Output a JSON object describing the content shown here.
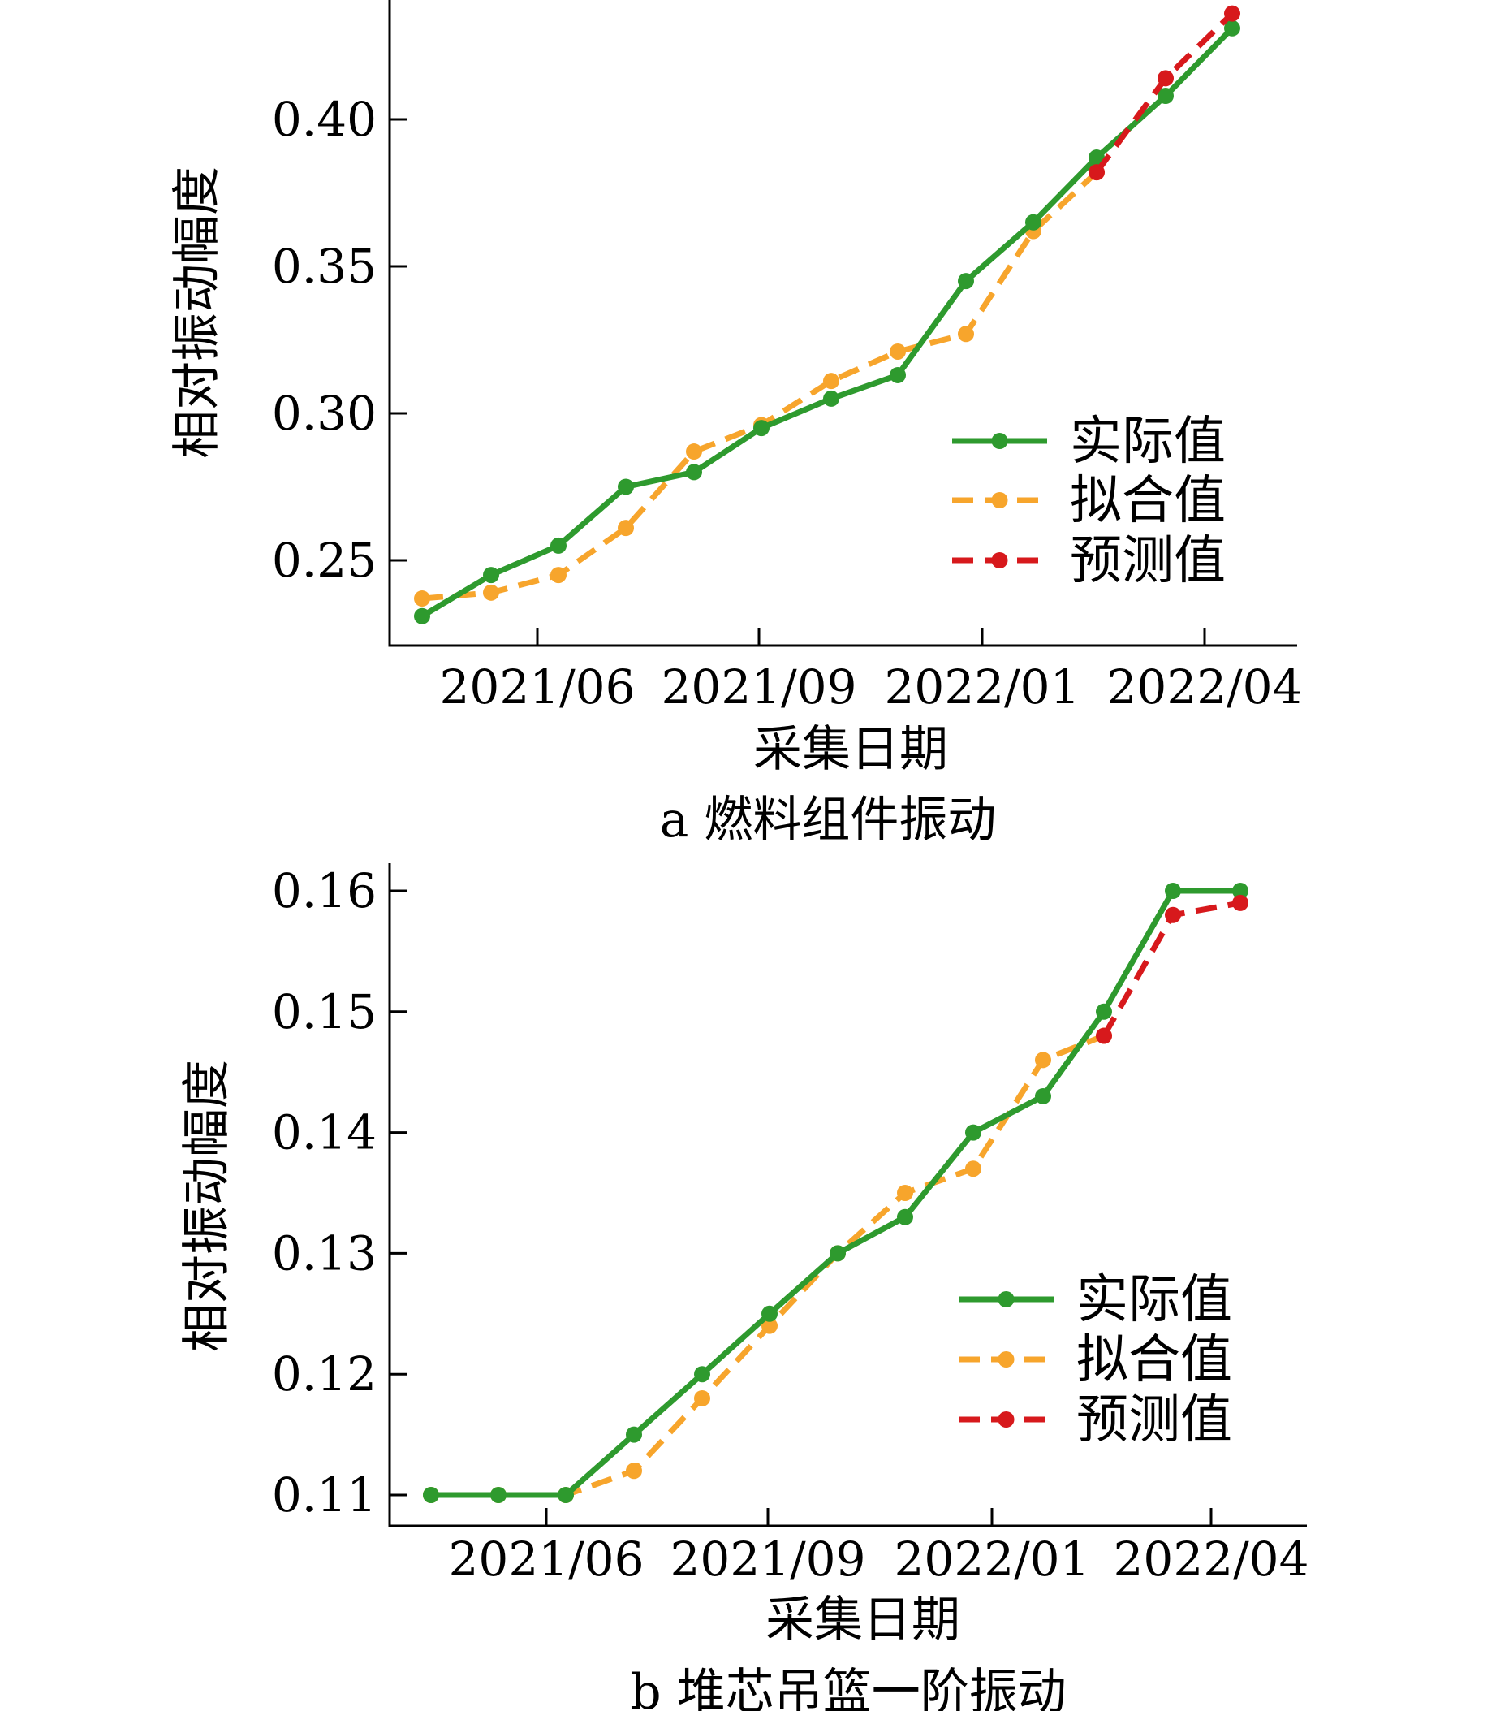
{
  "chart_data": [
    {
      "type": "line",
      "caption": "a  燃料组件振动",
      "xlabel": "采集日期",
      "ylabel": "相对振动幅度",
      "x_ticks": [
        "2021/06",
        "2021/09",
        "2022/01",
        "2022/04"
      ],
      "y_ticks": [
        "0.25",
        "0.30",
        "0.35",
        "0.40"
      ],
      "ylim": [
        0.22,
        0.44
      ],
      "legend_position": "lower-right",
      "grid": false,
      "series": [
        {
          "name": "实际值",
          "color": "#2e9a2e",
          "style": "solid",
          "values": [
            0.231,
            0.245,
            0.255,
            0.275,
            0.28,
            0.295,
            0.305,
            0.313,
            0.345,
            0.365,
            0.387,
            0.408,
            0.431
          ]
        },
        {
          "name": "拟合值",
          "color": "#f7a52c",
          "style": "dashed",
          "values": [
            0.237,
            0.239,
            0.245,
            0.261,
            0.287,
            0.296,
            0.311,
            0.321,
            0.327,
            0.362,
            0.382,
            null,
            null
          ]
        },
        {
          "name": "预测值",
          "color": "#d7191c",
          "style": "dashed",
          "values": [
            null,
            null,
            null,
            null,
            null,
            null,
            null,
            null,
            null,
            null,
            0.382,
            0.414,
            0.436
          ]
        }
      ]
    },
    {
      "type": "line",
      "caption": "b  堆芯吊篮一阶振动",
      "xlabel": "采集日期",
      "ylabel": "相对振动幅度",
      "x_ticks": [
        "2021/06",
        "2021/09",
        "2022/01",
        "2022/04"
      ],
      "y_ticks": [
        "0.11",
        "0.12",
        "0.13",
        "0.14",
        "0.15",
        "0.16"
      ],
      "ylim": [
        0.1075,
        0.1625
      ],
      "legend_position": "lower-right",
      "grid": false,
      "series": [
        {
          "name": "实际值",
          "color": "#2e9a2e",
          "style": "solid",
          "values": [
            0.11,
            0.11,
            0.11,
            0.115,
            0.12,
            0.125,
            0.13,
            0.133,
            0.14,
            0.143,
            0.15,
            0.16,
            0.16
          ]
        },
        {
          "name": "拟合值",
          "color": "#f7a52c",
          "style": "dashed",
          "values": [
            0.11,
            0.11,
            0.11,
            0.112,
            0.118,
            0.124,
            0.13,
            0.135,
            0.137,
            0.146,
            0.148,
            null,
            null
          ]
        },
        {
          "name": "预测值",
          "color": "#d7191c",
          "style": "dashed",
          "values": [
            null,
            null,
            null,
            null,
            null,
            null,
            null,
            null,
            null,
            null,
            0.148,
            0.158,
            0.159
          ]
        }
      ]
    }
  ]
}
